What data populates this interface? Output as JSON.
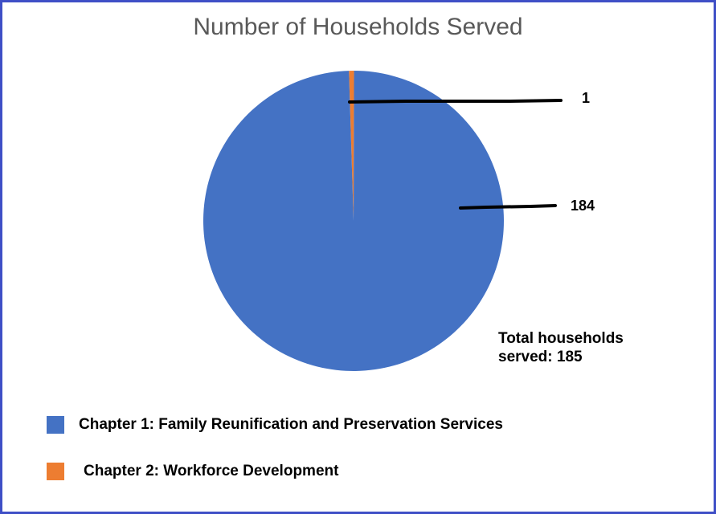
{
  "chart_data": {
    "type": "pie",
    "title": "Number of Households Served",
    "categories": [
      "Chapter 1: Family Reunification and Preservation Services",
      "Chapter 2: Workforce Development"
    ],
    "values": [
      184,
      1
    ],
    "colors": [
      "#4472c4",
      "#ed7d31"
    ],
    "annotation": "Total households served: 185",
    "legend": "bottom-left"
  }
}
